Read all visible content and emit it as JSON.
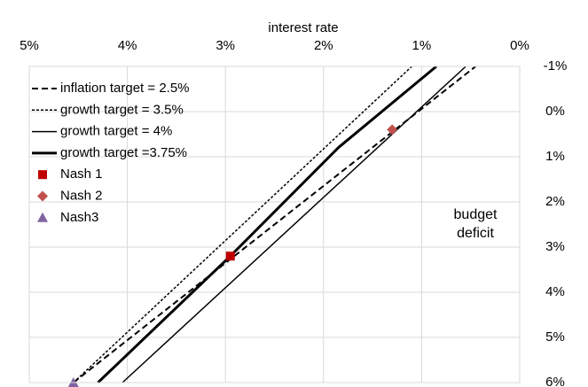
{
  "chart_data": {
    "type": "line",
    "x_label": "interest rate",
    "annotation": "budget deficit",
    "xlim": [
      5,
      0
    ],
    "xticks": [
      {
        "value": 5,
        "label": "5%"
      },
      {
        "value": 4,
        "label": "4%"
      },
      {
        "value": 3,
        "label": "3%"
      },
      {
        "value": 2,
        "label": "2%"
      },
      {
        "value": 1,
        "label": "1%"
      },
      {
        "value": 0,
        "label": "0%"
      }
    ],
    "ylim": [
      -1,
      6
    ],
    "yticks": [
      {
        "value": -1,
        "label": "-1%"
      },
      {
        "value": 0,
        "label": "0%"
      },
      {
        "value": 1,
        "label": "1%"
      },
      {
        "value": 2,
        "label": "2%"
      },
      {
        "value": 3,
        "label": "3%"
      },
      {
        "value": 4,
        "label": "4%"
      },
      {
        "value": 5,
        "label": "5%"
      },
      {
        "value": 6,
        "label": "6%"
      }
    ],
    "grid": true,
    "legend": "top-left",
    "series": [
      {
        "name": "inflation target = 2.5%",
        "color": "#000000",
        "style": "dashed",
        "width": 2,
        "x": [
          4.55,
          0.45
        ],
        "values": [
          6,
          -1
        ]
      },
      {
        "name": "growth target = 3.5%",
        "color": "#000000",
        "style": "dotted",
        "width": 1.5,
        "x": [
          4.55,
          1.1
        ],
        "values": [
          6,
          -1
        ]
      },
      {
        "name": "growth target = 4%",
        "color": "#000000",
        "style": "solid",
        "width": 1.5,
        "x": [
          4.05,
          0.55
        ],
        "values": [
          6,
          -1
        ]
      },
      {
        "name": "growth target =3.75%",
        "color": "#000000",
        "style": "solid",
        "width": 3,
        "x": [
          4.3,
          2.95,
          1.85,
          0.85
        ],
        "values": [
          6,
          3.2,
          0.8,
          -1
        ]
      },
      {
        "name": "Nash 1",
        "color": "#c00000",
        "marker": "square",
        "x": [
          2.95
        ],
        "values": [
          3.2
        ]
      },
      {
        "name": "Nash 2",
        "color": "#c0504d",
        "marker": "diamond",
        "x": [
          1.3
        ],
        "values": [
          0.4
        ]
      },
      {
        "name": "Nash3",
        "color": "#8064a2",
        "marker": "triangle",
        "x": [
          4.55
        ],
        "values": [
          6
        ]
      }
    ]
  }
}
